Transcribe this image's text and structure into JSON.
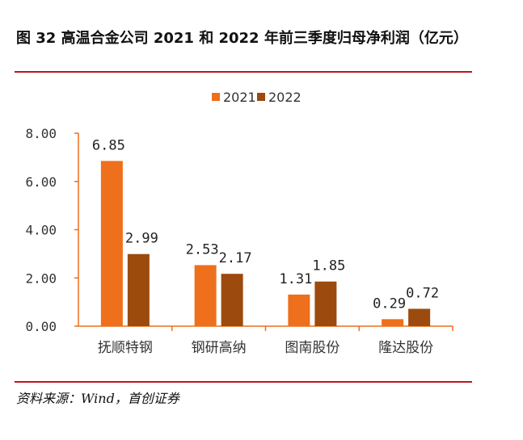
{
  "title": "图 32 高温合金公司 2021 和 2022 年前三季度归母净利润（亿元）",
  "source": "资料来源：Wind，首创证券",
  "chart_data": {
    "type": "bar",
    "categories": [
      "抚顺特钢",
      "钢研高纳",
      "图南股份",
      "隆达股份"
    ],
    "series": [
      {
        "name": "2021",
        "values": [
          6.85,
          2.53,
          1.31,
          0.29
        ],
        "color": "#ee6f1c"
      },
      {
        "name": "2022",
        "values": [
          2.99,
          2.17,
          1.85,
          0.72
        ],
        "color": "#9c4a0e"
      }
    ],
    "ylim": [
      0,
      8
    ],
    "yticks": [
      "0.00",
      "2.00",
      "4.00",
      "6.00",
      "8.00"
    ],
    "grid": false,
    "legend": "top-center",
    "data_labels": true
  }
}
